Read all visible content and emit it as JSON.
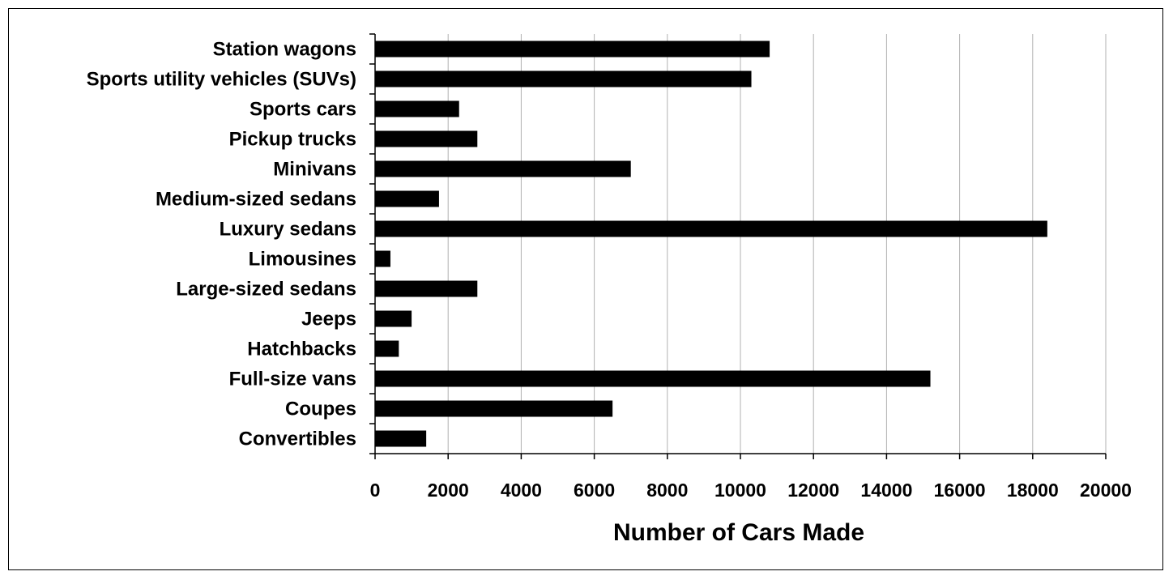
{
  "chart_data": {
    "type": "bar",
    "orientation": "horizontal",
    "title": "",
    "xlabel": "Number of Cars Made",
    "ylabel": "",
    "xlim": [
      0,
      20000
    ],
    "x_ticks": [
      0,
      2000,
      4000,
      6000,
      8000,
      10000,
      12000,
      14000,
      16000,
      18000,
      20000
    ],
    "grid": "vertical major gridlines",
    "legend": "none",
    "bar_color": "#000000",
    "gridline_color": "#b0b0b0",
    "categories": [
      "Station wagons",
      "Sports utility vehicles (SUVs)",
      "Sports cars",
      "Pickup trucks",
      "Minivans",
      "Medium-sized sedans",
      "Luxury sedans",
      "Limousines",
      "Large-sized sedans",
      "Jeeps",
      "Hatchbacks",
      "Full-size vans",
      "Coupes",
      "Convertibles"
    ],
    "values": [
      10800,
      10300,
      2300,
      2800,
      7000,
      1750,
      18400,
      420,
      2800,
      1000,
      650,
      15200,
      6500,
      1400
    ]
  }
}
